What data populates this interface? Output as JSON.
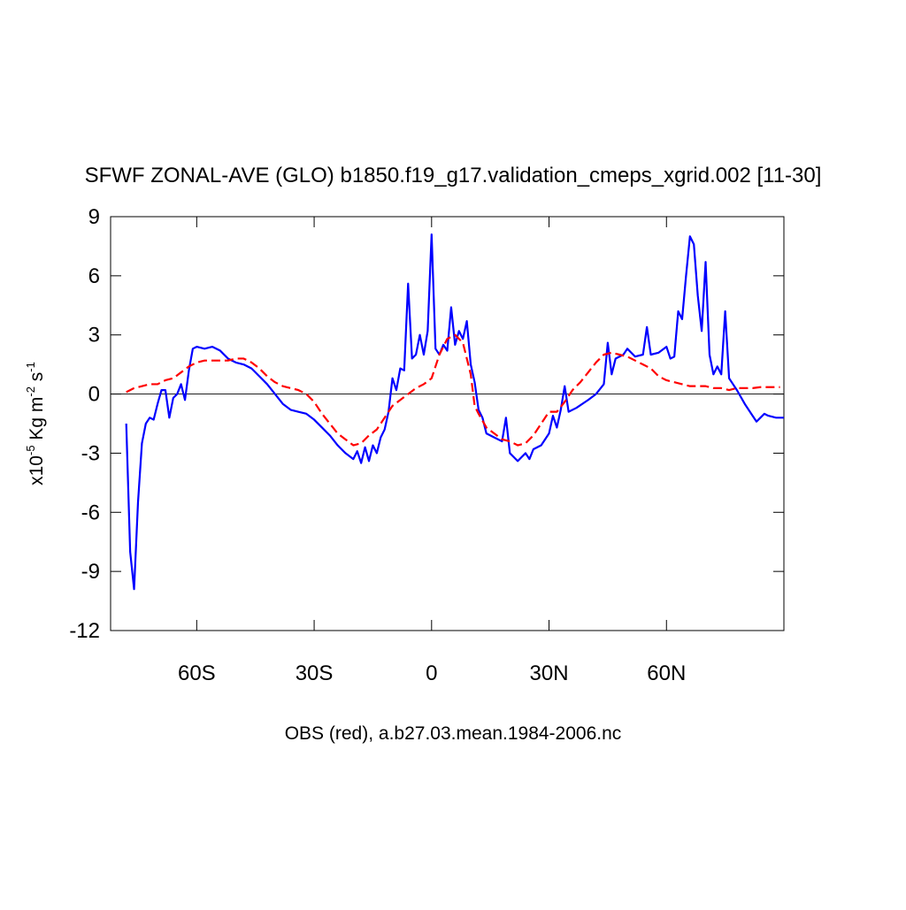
{
  "chart_data": {
    "type": "line",
    "title": "SFWF ZONAL-AVE (GLO) b1850.f19_g17.validation_cmeps_xgrid.002 [11-30]",
    "xlabel": "OBS (red), a.b27.03.mean.1984-2006.nc",
    "ylabel": [
      "x10",
      "-5",
      " Kg m",
      "-2",
      " s",
      "-1"
    ],
    "xlim": [
      -82,
      90
    ],
    "xticks": [
      {
        "value": -60,
        "label": "60S"
      },
      {
        "value": -30,
        "label": "30S"
      },
      0,
      {
        "value": 30,
        "label": "30N"
      },
      {
        "value": 60,
        "label": "60N"
      }
    ],
    "ylim": [
      -12,
      9
    ],
    "yticks": [
      9,
      6,
      3,
      0,
      -3,
      -6,
      -9,
      -12
    ],
    "zero_line": true,
    "series": [
      {
        "color": "#0000ff",
        "line_style": "solid",
        "x": [
          -78,
          -77,
          -76,
          -75,
          -74,
          -73,
          -72,
          -71,
          -70,
          -69,
          -68,
          -67,
          -66,
          -65,
          -64,
          -63,
          -62,
          -61,
          -60,
          -58,
          -56,
          -54,
          -52,
          -50,
          -48,
          -46,
          -44,
          -42,
          -40,
          -38,
          -36,
          -34,
          -32,
          -30,
          -28,
          -26,
          -24,
          -22,
          -20,
          -19,
          -18,
          -17,
          -16,
          -15,
          -14,
          -13,
          -12,
          -11,
          -10,
          -9,
          -8,
          -7,
          -6,
          -5,
          -4,
          -3,
          -2,
          -1,
          0,
          1,
          2,
          3,
          4,
          5,
          6,
          7,
          8,
          9,
          10,
          11,
          12,
          13,
          14,
          16,
          18,
          19,
          20,
          21,
          22,
          23,
          24,
          25,
          26,
          28,
          30,
          31,
          32,
          33,
          34,
          35,
          37,
          40,
          42,
          44,
          45,
          46,
          47,
          49,
          50,
          52,
          54,
          55,
          56,
          58,
          60,
          61,
          62,
          63,
          64,
          65,
          66,
          67,
          68,
          69,
          70,
          71,
          72,
          73,
          74,
          75,
          76,
          77,
          78,
          80,
          82,
          83,
          84,
          85,
          86,
          88,
          90
        ],
        "values": [
          -1.5,
          -8,
          -9.9,
          -5.5,
          -2.5,
          -1.5,
          -1.2,
          -1.3,
          -0.5,
          0.2,
          0.2,
          -1.2,
          -0.2,
          0,
          0.5,
          -0.3,
          1.2,
          2.3,
          2.4,
          2.3,
          2.4,
          2.2,
          1.8,
          1.6,
          1.5,
          1.3,
          0.9,
          0.5,
          0,
          -0.5,
          -0.8,
          -0.9,
          -1.0,
          -1.3,
          -1.7,
          -2.1,
          -2.6,
          -3.0,
          -3.3,
          -2.9,
          -3.5,
          -2.7,
          -3.4,
          -2.6,
          -3.0,
          -2.2,
          -1.8,
          -0.9,
          0.8,
          0.2,
          1.3,
          1.2,
          5.6,
          1.8,
          2.0,
          3.0,
          2.0,
          3.2,
          8.1,
          2.3,
          2.0,
          2.5,
          2.2,
          4.4,
          2.5,
          3.2,
          2.8,
          3.7,
          1.5,
          0.6,
          -0.8,
          -1.2,
          -2.0,
          -2.2,
          -2.4,
          -1.2,
          -3.0,
          -3.2,
          -3.4,
          -3.2,
          -3.0,
          -3.3,
          -2.8,
          -2.6,
          -2.0,
          -1.1,
          -1.7,
          -0.8,
          0.4,
          -0.9,
          -0.7,
          -0.3,
          0.0,
          0.5,
          2.6,
          1.0,
          1.8,
          2.0,
          2.3,
          1.9,
          2.0,
          3.4,
          2.0,
          2.1,
          2.4,
          1.8,
          1.9,
          4.2,
          3.8,
          6.0,
          8.0,
          7.6,
          5.0,
          3.2,
          6.7,
          2.0,
          1.0,
          1.4,
          1.0,
          4.2,
          0.8,
          0.5,
          0.2,
          -0.5,
          -1.1,
          -1.4,
          -1.2,
          -1.0,
          -1.1,
          -1.2,
          -1.2
        ]
      },
      {
        "color": "#ff0000",
        "line_style": "dashed",
        "x": [
          -78,
          -76,
          -74,
          -72,
          -70,
          -68,
          -66,
          -64,
          -62,
          -60,
          -58,
          -56,
          -54,
          -52,
          -50,
          -48,
          -46,
          -44,
          -42,
          -40,
          -38,
          -36,
          -34,
          -32,
          -30,
          -28,
          -26,
          -24,
          -22,
          -20,
          -18,
          -16,
          -14,
          -12,
          -10,
          -8,
          -6,
          -4,
          -2,
          0,
          2,
          4,
          6,
          8,
          10,
          11,
          12,
          14,
          16,
          18,
          20,
          22,
          24,
          26,
          28,
          30,
          32,
          34,
          36,
          38,
          40,
          42,
          44,
          46,
          48,
          50,
          52,
          54,
          56,
          58,
          60,
          62,
          64,
          66,
          68,
          70,
          72,
          74,
          76,
          78,
          80,
          82,
          84,
          86,
          88,
          89
        ],
        "values": [
          0.1,
          0.3,
          0.4,
          0.5,
          0.5,
          0.7,
          0.8,
          1.1,
          1.4,
          1.6,
          1.7,
          1.7,
          1.7,
          1.7,
          1.8,
          1.8,
          1.6,
          1.3,
          0.9,
          0.6,
          0.4,
          0.3,
          0.2,
          0,
          -0.4,
          -1.0,
          -1.5,
          -2.0,
          -2.3,
          -2.6,
          -2.5,
          -2.1,
          -1.8,
          -1.2,
          -0.6,
          -0.3,
          0,
          0.3,
          0.5,
          0.8,
          2.0,
          2.8,
          3.0,
          2.6,
          1.0,
          -0.6,
          -1.0,
          -1.7,
          -2.0,
          -2.3,
          -2.4,
          -2.6,
          -2.5,
          -2.1,
          -1.5,
          -0.9,
          -0.9,
          -0.4,
          0.2,
          0.6,
          1.1,
          1.6,
          2.0,
          2.1,
          2.0,
          1.9,
          1.7,
          1.5,
          1.3,
          0.9,
          0.7,
          0.6,
          0.5,
          0.4,
          0.4,
          0.4,
          0.3,
          0.3,
          0.2,
          0.3,
          0.3,
          0.3,
          0.35,
          0.35,
          0.35,
          0.35
        ]
      }
    ]
  }
}
